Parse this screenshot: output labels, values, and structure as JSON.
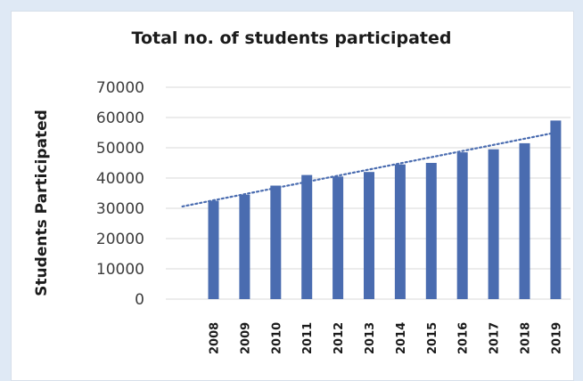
{
  "chart_data": {
    "type": "bar",
    "title": "Total no. of students participated",
    "xlabel": "",
    "ylabel": "Students Participated",
    "categories": [
      "2008",
      "2009",
      "2010",
      "2011",
      "2012",
      "2013",
      "2014",
      "2015",
      "2016",
      "2017",
      "2018",
      "2019"
    ],
    "values": [
      32500,
      34500,
      37500,
      41000,
      40500,
      42000,
      44500,
      45000,
      48500,
      49500,
      51500,
      59000
    ],
    "ylim": [
      0,
      70000
    ],
    "yticks": [
      "0",
      "10000",
      "20000",
      "30000",
      "40000",
      "50000",
      "60000",
      "70000"
    ],
    "trendline": {
      "type": "linear",
      "style": "dotted"
    },
    "grid": true,
    "legend": "none",
    "bar_color": "#4a6cb0",
    "trend_color": "#4a6cb0"
  }
}
